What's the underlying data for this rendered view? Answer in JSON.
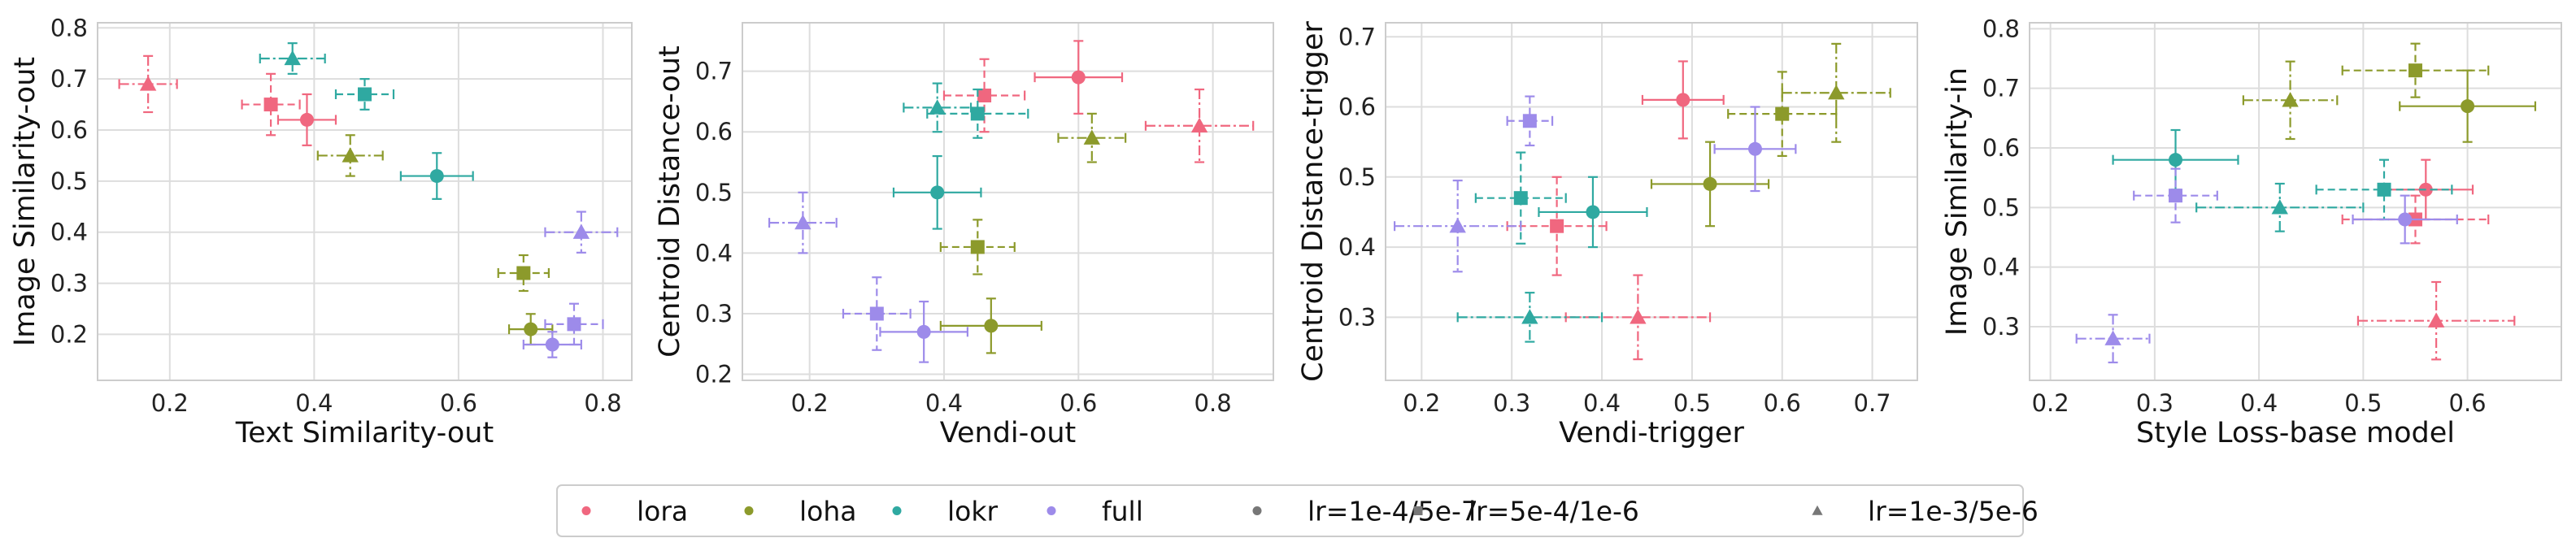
{
  "colors": {
    "lora": "#f0677f",
    "loha": "#8c9a2b",
    "lokr": "#2fa9a1",
    "full": "#9d8bea",
    "marker_legend": "#777777",
    "grid": "#dddddd",
    "spine": "#cccccc"
  },
  "legend": {
    "methods": [
      "lora",
      "loha",
      "lokr",
      "full"
    ],
    "lrs": [
      "lr=1e-4/5e-7",
      "lr=5e-4/1e-6",
      "lr=1e-3/5e-6"
    ],
    "placement": "bottom-center"
  },
  "chart_data": [
    {
      "type": "scatter",
      "xlabel": "Text Similarity-out",
      "ylabel": "Image Similarity-out",
      "xlim": [
        0.1,
        0.84
      ],
      "ylim": [
        0.11,
        0.81
      ],
      "xticks": [
        "0.2",
        "0.4",
        "0.6",
        "0.8"
      ],
      "yticks": [
        "0.2",
        "0.3",
        "0.4",
        "0.5",
        "0.6",
        "0.7",
        "0.8"
      ],
      "grid": true,
      "points": [
        {
          "method": "lora",
          "lr": "lr=1e-4/5e-7",
          "x": 0.39,
          "y": 0.62,
          "xerr": 0.04,
          "yerr": 0.05
        },
        {
          "method": "lora",
          "lr": "lr=5e-4/1e-6",
          "x": 0.34,
          "y": 0.65,
          "xerr": 0.04,
          "yerr": 0.06
        },
        {
          "method": "lora",
          "lr": "lr=1e-3/5e-6",
          "x": 0.17,
          "y": 0.69,
          "xerr": 0.04,
          "yerr": 0.055
        },
        {
          "method": "loha",
          "lr": "lr=1e-4/5e-7",
          "x": 0.7,
          "y": 0.21,
          "xerr": 0.03,
          "yerr": 0.03
        },
        {
          "method": "loha",
          "lr": "lr=5e-4/1e-6",
          "x": 0.69,
          "y": 0.32,
          "xerr": 0.035,
          "yerr": 0.035
        },
        {
          "method": "loha",
          "lr": "lr=1e-3/5e-6",
          "x": 0.45,
          "y": 0.55,
          "xerr": 0.045,
          "yerr": 0.04
        },
        {
          "method": "lokr",
          "lr": "lr=1e-4/5e-7",
          "x": 0.57,
          "y": 0.51,
          "xerr": 0.05,
          "yerr": 0.045
        },
        {
          "method": "lokr",
          "lr": "lr=5e-4/1e-6",
          "x": 0.47,
          "y": 0.67,
          "xerr": 0.04,
          "yerr": 0.03
        },
        {
          "method": "lokr",
          "lr": "lr=1e-3/5e-6",
          "x": 0.37,
          "y": 0.74,
          "xerr": 0.045,
          "yerr": 0.03
        },
        {
          "method": "full",
          "lr": "lr=1e-4/5e-7",
          "x": 0.73,
          "y": 0.18,
          "xerr": 0.04,
          "yerr": 0.025
        },
        {
          "method": "full",
          "lr": "lr=5e-4/1e-6",
          "x": 0.76,
          "y": 0.22,
          "xerr": 0.04,
          "yerr": 0.04
        },
        {
          "method": "full",
          "lr": "lr=1e-3/5e-6",
          "x": 0.77,
          "y": 0.4,
          "xerr": 0.05,
          "yerr": 0.04
        }
      ]
    },
    {
      "type": "scatter",
      "xlabel": "Vendi-out",
      "ylabel": "Centroid Distance-out",
      "xlim": [
        0.1,
        0.89
      ],
      "ylim": [
        0.19,
        0.78
      ],
      "xticks": [
        "0.2",
        "0.4",
        "0.6",
        "0.8"
      ],
      "yticks": [
        "0.2",
        "0.3",
        "0.4",
        "0.5",
        "0.6",
        "0.7"
      ],
      "grid": true,
      "points": [
        {
          "method": "lora",
          "lr": "lr=1e-4/5e-7",
          "x": 0.6,
          "y": 0.69,
          "xerr": 0.065,
          "yerr": 0.06
        },
        {
          "method": "lora",
          "lr": "lr=5e-4/1e-6",
          "x": 0.46,
          "y": 0.66,
          "xerr": 0.06,
          "yerr": 0.06
        },
        {
          "method": "lora",
          "lr": "lr=1e-3/5e-6",
          "x": 0.78,
          "y": 0.61,
          "xerr": 0.08,
          "yerr": 0.06
        },
        {
          "method": "loha",
          "lr": "lr=1e-4/5e-7",
          "x": 0.47,
          "y": 0.28,
          "xerr": 0.075,
          "yerr": 0.045
        },
        {
          "method": "loha",
          "lr": "lr=5e-4/1e-6",
          "x": 0.45,
          "y": 0.41,
          "xerr": 0.055,
          "yerr": 0.045
        },
        {
          "method": "loha",
          "lr": "lr=1e-3/5e-6",
          "x": 0.62,
          "y": 0.59,
          "xerr": 0.05,
          "yerr": 0.04
        },
        {
          "method": "lokr",
          "lr": "lr=1e-4/5e-7",
          "x": 0.39,
          "y": 0.5,
          "xerr": 0.065,
          "yerr": 0.06
        },
        {
          "method": "lokr",
          "lr": "lr=5e-4/1e-6",
          "x": 0.45,
          "y": 0.63,
          "xerr": 0.075,
          "yerr": 0.04
        },
        {
          "method": "lokr",
          "lr": "lr=1e-3/5e-6",
          "x": 0.39,
          "y": 0.64,
          "xerr": 0.05,
          "yerr": 0.04
        },
        {
          "method": "full",
          "lr": "lr=1e-4/5e-7",
          "x": 0.37,
          "y": 0.27,
          "xerr": 0.065,
          "yerr": 0.05
        },
        {
          "method": "full",
          "lr": "lr=5e-4/1e-6",
          "x": 0.3,
          "y": 0.3,
          "xerr": 0.05,
          "yerr": 0.06
        },
        {
          "method": "full",
          "lr": "lr=1e-3/5e-6",
          "x": 0.19,
          "y": 0.45,
          "xerr": 0.05,
          "yerr": 0.05
        }
      ]
    },
    {
      "type": "scatter",
      "xlabel": "Vendi-trigger",
      "ylabel": "Centroid Distance-trigger",
      "xlim": [
        0.16,
        0.75
      ],
      "ylim": [
        0.21,
        0.72
      ],
      "xticks": [
        "0.2",
        "0.3",
        "0.4",
        "0.5",
        "0.6",
        "0.7"
      ],
      "yticks": [
        "0.3",
        "0.4",
        "0.5",
        "0.6",
        "0.7"
      ],
      "grid": true,
      "points": [
        {
          "method": "lora",
          "lr": "lr=1e-4/5e-7",
          "x": 0.49,
          "y": 0.61,
          "xerr": 0.045,
          "yerr": 0.055
        },
        {
          "method": "lora",
          "lr": "lr=5e-4/1e-6",
          "x": 0.35,
          "y": 0.43,
          "xerr": 0.055,
          "yerr": 0.07
        },
        {
          "method": "lora",
          "lr": "lr=1e-3/5e-6",
          "x": 0.44,
          "y": 0.3,
          "xerr": 0.08,
          "yerr": 0.06
        },
        {
          "method": "loha",
          "lr": "lr=1e-4/5e-7",
          "x": 0.52,
          "y": 0.49,
          "xerr": 0.065,
          "yerr": 0.06
        },
        {
          "method": "loha",
          "lr": "lr=5e-4/1e-6",
          "x": 0.6,
          "y": 0.59,
          "xerr": 0.06,
          "yerr": 0.06
        },
        {
          "method": "loha",
          "lr": "lr=1e-3/5e-6",
          "x": 0.66,
          "y": 0.62,
          "xerr": 0.06,
          "yerr": 0.07
        },
        {
          "method": "lokr",
          "lr": "lr=1e-4/5e-7",
          "x": 0.39,
          "y": 0.45,
          "xerr": 0.06,
          "yerr": 0.05
        },
        {
          "method": "lokr",
          "lr": "lr=5e-4/1e-6",
          "x": 0.31,
          "y": 0.47,
          "xerr": 0.05,
          "yerr": 0.065
        },
        {
          "method": "lokr",
          "lr": "lr=1e-3/5e-6",
          "x": 0.32,
          "y": 0.3,
          "xerr": 0.08,
          "yerr": 0.035
        },
        {
          "method": "full",
          "lr": "lr=1e-4/5e-7",
          "x": 0.57,
          "y": 0.54,
          "xerr": 0.045,
          "yerr": 0.06
        },
        {
          "method": "full",
          "lr": "lr=5e-4/1e-6",
          "x": 0.32,
          "y": 0.58,
          "xerr": 0.025,
          "yerr": 0.035
        },
        {
          "method": "full",
          "lr": "lr=1e-3/5e-6",
          "x": 0.24,
          "y": 0.43,
          "xerr": 0.07,
          "yerr": 0.065
        }
      ]
    },
    {
      "type": "scatter",
      "xlabel": "Style Loss-base model",
      "ylabel": "Image Similarity-in",
      "xlim": [
        0.18,
        0.69
      ],
      "ylim": [
        0.21,
        0.81
      ],
      "xticks": [
        "0.2",
        "0.3",
        "0.4",
        "0.5",
        "0.6"
      ],
      "yticks": [
        "0.3",
        "0.4",
        "0.5",
        "0.6",
        "0.7",
        "0.8"
      ],
      "grid": true,
      "points": [
        {
          "method": "lora",
          "lr": "lr=1e-4/5e-7",
          "x": 0.56,
          "y": 0.53,
          "xerr": 0.045,
          "yerr": 0.05
        },
        {
          "method": "lora",
          "lr": "lr=5e-4/1e-6",
          "x": 0.55,
          "y": 0.48,
          "xerr": 0.07,
          "yerr": 0.04
        },
        {
          "method": "lora",
          "lr": "lr=1e-3/5e-6",
          "x": 0.57,
          "y": 0.31,
          "xerr": 0.075,
          "yerr": 0.065
        },
        {
          "method": "loha",
          "lr": "lr=1e-4/5e-7",
          "x": 0.6,
          "y": 0.67,
          "xerr": 0.065,
          "yerr": 0.06
        },
        {
          "method": "loha",
          "lr": "lr=5e-4/1e-6",
          "x": 0.55,
          "y": 0.73,
          "xerr": 0.07,
          "yerr": 0.045
        },
        {
          "method": "loha",
          "lr": "lr=1e-3/5e-6",
          "x": 0.43,
          "y": 0.68,
          "xerr": 0.045,
          "yerr": 0.065
        },
        {
          "method": "lokr",
          "lr": "lr=1e-4/5e-7",
          "x": 0.32,
          "y": 0.58,
          "xerr": 0.06,
          "yerr": 0.05
        },
        {
          "method": "lokr",
          "lr": "lr=5e-4/1e-6",
          "x": 0.52,
          "y": 0.53,
          "xerr": 0.065,
          "yerr": 0.05
        },
        {
          "method": "lokr",
          "lr": "lr=1e-3/5e-6",
          "x": 0.42,
          "y": 0.5,
          "xerr": 0.08,
          "yerr": 0.04
        },
        {
          "method": "full",
          "lr": "lr=1e-4/5e-7",
          "x": 0.54,
          "y": 0.48,
          "xerr": 0.05,
          "yerr": 0.04
        },
        {
          "method": "full",
          "lr": "lr=5e-4/1e-6",
          "x": 0.32,
          "y": 0.52,
          "xerr": 0.04,
          "yerr": 0.045
        },
        {
          "method": "full",
          "lr": "lr=1e-3/5e-6",
          "x": 0.26,
          "y": 0.28,
          "xerr": 0.035,
          "yerr": 0.04
        }
      ]
    }
  ]
}
